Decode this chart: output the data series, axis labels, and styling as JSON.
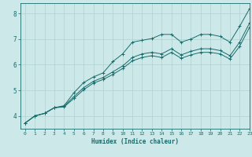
{
  "xlabel": "Humidex (Indice chaleur)",
  "bg_color": "#cce8e8",
  "grid_color": "#b0d0d0",
  "line_color": "#1a6b6b",
  "xlim": [
    -0.5,
    23
  ],
  "ylim": [
    3.5,
    8.4
  ],
  "xticks": [
    0,
    1,
    2,
    3,
    4,
    5,
    6,
    7,
    8,
    9,
    10,
    11,
    12,
    13,
    14,
    15,
    16,
    17,
    18,
    19,
    20,
    21,
    22,
    23
  ],
  "yticks": [
    4,
    5,
    6,
    7,
    8
  ],
  "line1_x": [
    0,
    1,
    2,
    3,
    4,
    5,
    6,
    7,
    8,
    9,
    10,
    11,
    12,
    13,
    14,
    15,
    16,
    17,
    18,
    19,
    20,
    21,
    22,
    23
  ],
  "line1_y": [
    3.72,
    4.0,
    4.1,
    4.32,
    4.4,
    4.9,
    5.3,
    5.52,
    5.68,
    6.12,
    6.42,
    6.88,
    6.95,
    7.02,
    7.18,
    7.18,
    6.88,
    7.0,
    7.18,
    7.18,
    7.1,
    6.88,
    7.5,
    8.18
  ],
  "line2_x": [
    0,
    1,
    2,
    3,
    4,
    5,
    6,
    7,
    8,
    9,
    10,
    11,
    12,
    13,
    14,
    15,
    16,
    17,
    18,
    19,
    20,
    21,
    22,
    23
  ],
  "line2_y": [
    3.72,
    4.0,
    4.1,
    4.32,
    4.38,
    4.75,
    5.1,
    5.35,
    5.5,
    5.72,
    5.95,
    6.28,
    6.42,
    6.48,
    6.42,
    6.62,
    6.38,
    6.52,
    6.62,
    6.62,
    6.55,
    6.35,
    6.88,
    7.62
  ],
  "line3_x": [
    0,
    1,
    2,
    3,
    4,
    5,
    6,
    7,
    8,
    9,
    10,
    11,
    12,
    13,
    14,
    15,
    16,
    17,
    18,
    19,
    20,
    21,
    22,
    23
  ],
  "line3_y": [
    3.72,
    4.0,
    4.1,
    4.32,
    4.35,
    4.68,
    5.02,
    5.28,
    5.42,
    5.62,
    5.85,
    6.15,
    6.28,
    6.35,
    6.28,
    6.48,
    6.25,
    6.38,
    6.48,
    6.48,
    6.42,
    6.22,
    6.72,
    7.45
  ]
}
